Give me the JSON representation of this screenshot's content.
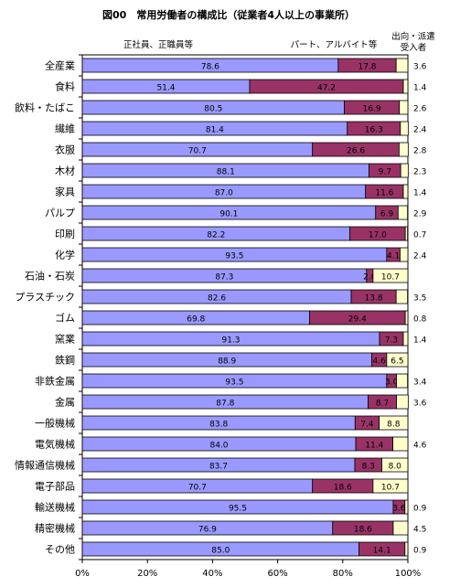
{
  "chart_data": {
    "type": "bar",
    "orientation": "horizontal",
    "stacked": true,
    "percent": true,
    "title": "図00　常用労働者の構成比（従業者4人以上の事業所）",
    "legend_labels": [
      "正社員、正職員等",
      "パート、アルバイト等",
      "出向・派遣受入者"
    ],
    "categories": [
      "全産業",
      "食料",
      "飲料・たばこ",
      "繊維",
      "衣服",
      "木材",
      "家具",
      "パルプ",
      "印刷",
      "化学",
      "石油・石炭",
      "プラスチック",
      "ゴム",
      "窯業",
      "鉄鋼",
      "非鉄金属",
      "金属",
      "一般機械",
      "電気機械",
      "情報通信機械",
      "電子部品",
      "輸送機械",
      "精密機械",
      "その他"
    ],
    "series": [
      {
        "name": "正社員、正職員等",
        "values": [
          78.6,
          51.4,
          80.5,
          81.4,
          70.7,
          88.1,
          87.0,
          90.1,
          82.2,
          93.5,
          87.3,
          82.6,
          69.8,
          91.3,
          88.9,
          93.5,
          87.8,
          83.8,
          84.0,
          83.7,
          70.7,
          95.5,
          76.9,
          85.0
        ]
      },
      {
        "name": "パート、アルバイト等",
        "values": [
          17.8,
          47.2,
          16.9,
          16.3,
          26.6,
          9.7,
          11.6,
          6.9,
          17.0,
          4.1,
          2.0,
          13.8,
          29.4,
          7.3,
          4.6,
          3.0,
          8.7,
          7.4,
          11.4,
          8.3,
          18.6,
          3.6,
          18.6,
          14.1
        ]
      },
      {
        "name": "出向・派遣受入者",
        "values": [
          3.6,
          1.4,
          2.6,
          2.4,
          2.8,
          2.3,
          1.4,
          2.9,
          0.7,
          2.4,
          10.7,
          3.5,
          0.8,
          1.4,
          6.5,
          3.4,
          3.6,
          8.8,
          4.6,
          8.0,
          10.7,
          0.9,
          4.5,
          0.9
        ]
      }
    ],
    "xlim": [
      0,
      100
    ],
    "xticks": [
      "0%",
      "20%",
      "40%",
      "60%",
      "80%",
      "100%"
    ],
    "colors": [
      "#9999ff",
      "#993366",
      "#ffffcc"
    ],
    "third_label_inside": [
      false,
      false,
      false,
      false,
      false,
      false,
      false,
      false,
      false,
      false,
      true,
      false,
      false,
      false,
      true,
      false,
      false,
      true,
      false,
      true,
      true,
      false,
      false,
      false
    ]
  }
}
